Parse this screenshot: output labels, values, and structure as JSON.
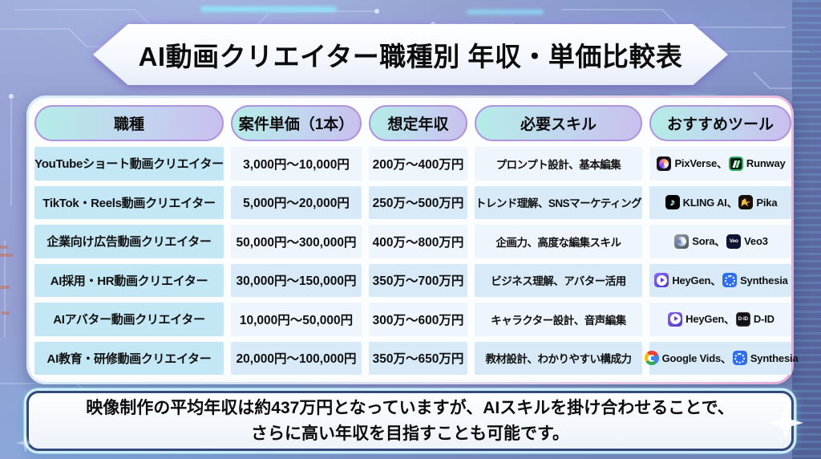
{
  "title": "AI動画クリエイター職種別 年収・単価比較表",
  "table": {
    "headers": [
      "職種",
      "案件単価（1本）",
      "想定年収",
      "必要スキル",
      "おすすめツール"
    ],
    "rows": [
      {
        "job": "YouTubeショート動画クリエイター",
        "price": "3,000円〜10,000円",
        "income": "200万〜400万円",
        "skills": "プロンプト設計、基本編集",
        "tools": [
          {
            "label": "PixVerse",
            "icon": "pixverse-icon",
            "sep": "、"
          },
          {
            "label": "Runway",
            "icon": "runway-icon",
            "sep": ""
          }
        ]
      },
      {
        "job": "TikTok・Reels動画クリエイター",
        "price": "5,000円〜20,000円",
        "income": "250万〜500万円",
        "skills": "トレンド理解、SNSマーケティング",
        "tools": [
          {
            "label": "KLING AI",
            "icon": "kling-icon",
            "sep": "、"
          },
          {
            "label": "Pika",
            "icon": "pika-icon",
            "sep": ""
          }
        ]
      },
      {
        "job": "企業向け広告動画クリエイター",
        "price": "50,000円〜300,000円",
        "income": "400万〜800万円",
        "skills": "企画力、高度な編集スキル",
        "tools": [
          {
            "label": "Sora",
            "icon": "sora-icon",
            "sep": "、"
          },
          {
            "label": "Veo3",
            "icon": "veo-icon",
            "sep": ""
          }
        ]
      },
      {
        "job": "AI採用・HR動画クリエイター",
        "price": "30,000円〜150,000円",
        "income": "350万〜700万円",
        "skills": "ビジネス理解、アバター活用",
        "tools": [
          {
            "label": "HeyGen",
            "icon": "heygen-icon",
            "sep": "、"
          },
          {
            "label": "Synthesia",
            "icon": "synthesia-icon",
            "sep": ""
          }
        ]
      },
      {
        "job": "AIアバター動画クリエイター",
        "price": "10,000円〜50,000円",
        "income": "300万〜600万円",
        "skills": "キャラクター設計、音声編集",
        "tools": [
          {
            "label": "HeyGen",
            "icon": "heygen-icon",
            "sep": "、"
          },
          {
            "label": "D-ID",
            "icon": "did-icon",
            "sep": ""
          }
        ]
      },
      {
        "job": "AI教育・研修動画クリエイター",
        "price": "20,000円〜100,000円",
        "income": "350万〜650万円",
        "skills": "教材設計、わかりやすい構成力",
        "tools": [
          {
            "label": "Google Vids",
            "icon": "google-icon",
            "sep": "、"
          },
          {
            "label": "Synthesia",
            "icon": "synthesia-icon",
            "sep": ""
          }
        ]
      }
    ]
  },
  "footer": {
    "line1": "映像制作の平均年収は約437万円となっていますが、AIスキルを掛け合わせることで、",
    "line2": "さらに高い年収を目指すことも可能です。"
  },
  "colors": {
    "background_base": "#8892c4",
    "banner_fill": "#ffffff",
    "banner_text": "#0c0c0c",
    "header_gradient_start": "#b4ece7",
    "header_gradient_end": "#c9bfee",
    "header_border": "#b193dd",
    "job_cell": "#c3e7f5",
    "row_odd": "#eef5fc",
    "row_even": "#d8eaf7",
    "card_border_pink": "#e7a6d3",
    "footer_border": "#35497c",
    "footer_glow": "#cdf2fc",
    "circuit_cyan": "#8feaff"
  },
  "chart_data": {
    "type": "table",
    "title": "AI動画クリエイター職種別 年収・単価比較表",
    "columns": [
      "職種",
      "案件単価（1本）",
      "想定年収",
      "必要スキル",
      "おすすめツール"
    ],
    "rows": [
      [
        "YouTubeショート動画クリエイター",
        "3,000円〜10,000円",
        "200万〜400万円",
        "プロンプト設計、基本編集",
        "PixVerse、Runway"
      ],
      [
        "TikTok・Reels動画クリエイター",
        "5,000円〜20,000円",
        "250万〜500万円",
        "トレンド理解、SNSマーケティング",
        "KLING AI、Pika"
      ],
      [
        "企業向け広告動画クリエイター",
        "50,000円〜300,000円",
        "400万〜800万円",
        "企画力、高度な編集スキル",
        "Sora、Veo3"
      ],
      [
        "AI採用・HR動画クリエイター",
        "30,000円〜150,000円",
        "350万〜700万円",
        "ビジネス理解、アバター活用",
        "HeyGen、Synthesia"
      ],
      [
        "AIアバター動画クリエイター",
        "10,000円〜50,000円",
        "300万〜600万円",
        "キャラクター設計、音声編集",
        "HeyGen、D-ID"
      ],
      [
        "AI教育・研修動画クリエイター",
        "20,000円〜100,000円",
        "350万〜650万円",
        "教材設計、わかりやすい構成力",
        "Google Vids、Synthesia"
      ]
    ],
    "note": "映像制作の平均年収は約437万円となっていますが、AIスキルを掛け合わせることで、さらに高い年収を目指すことも可能です。"
  }
}
